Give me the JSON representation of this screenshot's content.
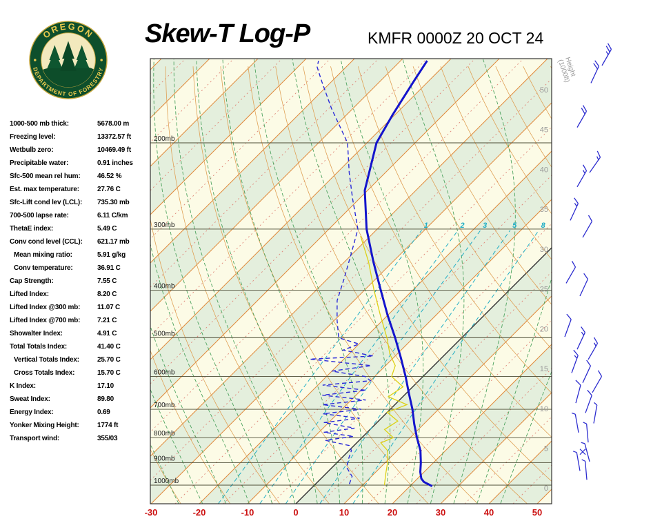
{
  "header": {
    "title": "Skew-T Log-P",
    "station_line": "KMFR 0000Z 20 OCT 24",
    "logo": {
      "org_top": "OREGON",
      "org_bottom": "DEPARTMENT OF FORESTRY"
    }
  },
  "stats": [
    {
      "label": "1000-500 mb thick:",
      "value": "5678.00 m",
      "indent": false
    },
    {
      "label": "Freezing level:",
      "value": "13372.57 ft",
      "indent": false
    },
    {
      "label": "Wetbulb zero:",
      "value": "10469.49 ft",
      "indent": false
    },
    {
      "label": "Precipitable water:",
      "value": "0.91 inches",
      "indent": false
    },
    {
      "label": "Sfc-500 mean rel hum:",
      "value": "46.52 %",
      "indent": false
    },
    {
      "label": "Est. max temperature:",
      "value": "27.76 C",
      "indent": false
    },
    {
      "label": "Sfc-Lift cond lev (LCL):",
      "value": "735.30 mb",
      "indent": false
    },
    {
      "label": "700-500 lapse rate:",
      "value": "6.11 C/km",
      "indent": false
    },
    {
      "label": "ThetaE index:",
      "value": "5.49 C",
      "indent": false
    },
    {
      "label": "Conv cond level (CCL):",
      "value": "621.17 mb",
      "indent": false
    },
    {
      "label": "Mean mixing ratio:",
      "value": "5.91 g/kg",
      "indent": true
    },
    {
      "label": "Conv temperature:",
      "value": "36.91 C",
      "indent": true
    },
    {
      "label": "Cap Strength:",
      "value": "7.55 C",
      "indent": false
    },
    {
      "label": "Lifted Index:",
      "value": "8.20 C",
      "indent": false
    },
    {
      "label": "Lifted Index @300 mb:",
      "value": "11.07 C",
      "indent": false
    },
    {
      "label": "Lifted Index @700 mb:",
      "value": "7.21 C",
      "indent": false
    },
    {
      "label": "Showalter Index:",
      "value": "4.91 C",
      "indent": false
    },
    {
      "label": "Total Totals Index:",
      "value": "41.40 C",
      "indent": false
    },
    {
      "label": "Vertical Totals Index:",
      "value": "25.70 C",
      "indent": true
    },
    {
      "label": "Cross Totals Index:",
      "value": "15.70 C",
      "indent": true
    },
    {
      "label": "K Index:",
      "value": "17.10",
      "indent": false
    },
    {
      "label": "Sweat Index:",
      "value": "89.80",
      "indent": false
    },
    {
      "label": "Energy Index:",
      "value": "0.69",
      "indent": false
    },
    {
      "label": "Yonker Mixing Height:",
      "value": "1774 ft",
      "indent": false
    },
    {
      "label": "Transport wind:",
      "value": "355/03",
      "indent": false
    }
  ],
  "chart_data": {
    "type": "skewt-log-p",
    "station": "KMFR",
    "valid_time": "0000Z 20 OCT 24",
    "pressure_unit": "mb",
    "pressure_levels": [
      200,
      300,
      400,
      500,
      600,
      700,
      800,
      900,
      1000
    ],
    "x_axis": {
      "ticks": [
        -30,
        -20,
        -10,
        0,
        10,
        20,
        30,
        40,
        50
      ],
      "unit": "C",
      "color": "#cc1111"
    },
    "height_axis": {
      "title": "Height",
      "subtitle": "(1000ft)",
      "ticks": [
        0,
        5,
        10,
        15,
        20,
        25,
        30,
        35,
        40,
        45,
        50
      ]
    },
    "isotherms": {
      "min": -120,
      "max": 50,
      "step": 10,
      "color": "#e08a3c"
    },
    "dry_adiabats": {
      "min": -30,
      "max": 150,
      "step": 10,
      "color": "#dfa055"
    },
    "moist_adiabats": {
      "start_temps": [
        -30,
        -25,
        -20,
        -15,
        -10,
        -5,
        0,
        5,
        10,
        15,
        20,
        25,
        30,
        35,
        40
      ],
      "color": "#4ea35f"
    },
    "mixing_ratio": {
      "values": [
        1,
        2,
        3,
        5,
        8
      ],
      "color": "#21aec5",
      "label_pressure": 300,
      "top_pressure": 292
    },
    "colors": {
      "bg": "#fcfbe6",
      "band": "#e4efdd",
      "isobar": "#4c4c35",
      "freezing": "#333333",
      "minor_isotherm": "#df8577",
      "barb": "#2c2ccf",
      "height_label": "#9a9a9a",
      "temperature": "#1414cc",
      "dewpoint": "#2a2ad8",
      "wetbulb": "#ddd116",
      "frame": "#333333",
      "pressure_label": "#1a1a1a"
    },
    "sounding": {
      "temperature": [
        [
          1005,
          24.6
        ],
        [
          985,
          22
        ],
        [
          970,
          20.8
        ],
        [
          940,
          19.2
        ],
        [
          900,
          17.4
        ],
        [
          850,
          14.8
        ],
        [
          800,
          11.4
        ],
        [
          750,
          8
        ],
        [
          700,
          4.6
        ],
        [
          650,
          0.6
        ],
        [
          600,
          -3.6
        ],
        [
          550,
          -8.4
        ],
        [
          500,
          -13.8
        ],
        [
          450,
          -20
        ],
        [
          400,
          -26.6
        ],
        [
          350,
          -34
        ],
        [
          300,
          -42.2
        ],
        [
          250,
          -50.6
        ],
        [
          200,
          -58
        ],
        [
          175,
          -60.5
        ],
        [
          150,
          -63
        ],
        [
          136,
          -64.5
        ]
      ],
      "dewpoint": [
        [
          995,
          7
        ],
        [
          960,
          6
        ],
        [
          920,
          3
        ],
        [
          880,
          1.5
        ],
        [
          850,
          0.5
        ],
        [
          830,
          -1
        ],
        [
          810,
          -7
        ],
        [
          795,
          -2
        ],
        [
          780,
          -9
        ],
        [
          765,
          -3.5
        ],
        [
          745,
          -11
        ],
        [
          730,
          -4.5
        ],
        [
          715,
          -13
        ],
        [
          700,
          -6
        ],
        [
          685,
          -15
        ],
        [
          670,
          -7
        ],
        [
          655,
          -17
        ],
        [
          640,
          -9
        ],
        [
          625,
          -19
        ],
        [
          612,
          -10
        ],
        [
          600,
          -12
        ],
        [
          585,
          -20
        ],
        [
          570,
          -13
        ],
        [
          553,
          -27
        ],
        [
          545,
          -14.5
        ],
        [
          530,
          -22
        ],
        [
          515,
          -20
        ],
        [
          500,
          -25.5
        ],
        [
          460,
          -29.5
        ],
        [
          420,
          -33.5
        ],
        [
          380,
          -36.5
        ],
        [
          340,
          -40
        ],
        [
          300,
          -44
        ],
        [
          260,
          -51.4
        ],
        [
          230,
          -57.5
        ],
        [
          200,
          -64
        ],
        [
          170,
          -74.5
        ],
        [
          150,
          -82
        ],
        [
          140,
          -86
        ],
        [
          136,
          -87
        ]
      ],
      "wetbulb": [
        [
          1000,
          14.5
        ],
        [
          950,
          12.5
        ],
        [
          900,
          10.5
        ],
        [
          850,
          8
        ],
        [
          820,
          5
        ],
        [
          800,
          6.5
        ],
        [
          770,
          3
        ],
        [
          740,
          4
        ],
        [
          710,
          0
        ],
        [
          685,
          2.5
        ],
        [
          660,
          -3
        ],
        [
          630,
          -2
        ],
        [
          600,
          -6.5
        ],
        [
          570,
          -8
        ],
        [
          540,
          -11.5
        ],
        [
          500,
          -15.5
        ],
        [
          450,
          -21.5
        ],
        [
          400,
          -28
        ],
        [
          350,
          -35
        ],
        [
          310,
          -42
        ]
      ]
    },
    "wind_barbs": [
      {
        "p": 139,
        "dir": 30,
        "spd": 25,
        "xo": 28
      },
      {
        "p": 151,
        "dir": 25,
        "spd": 20,
        "xo": 12
      },
      {
        "p": 186,
        "dir": 30,
        "spd": 20,
        "xo": -8
      },
      {
        "p": 230,
        "dir": 35,
        "spd": 15,
        "xo": 10
      },
      {
        "p": 246,
        "dir": 30,
        "spd": 15,
        "xo": -8
      },
      {
        "p": 288,
        "dir": 25,
        "spd": 15,
        "xo": -18
      },
      {
        "p": 312,
        "dir": 30,
        "spd": 10,
        "xo": 0
      },
      {
        "p": 387,
        "dir": 30,
        "spd": 10,
        "xo": -24
      },
      {
        "p": 411,
        "dir": 25,
        "spd": 10,
        "xo": -4
      },
      {
        "p": 498,
        "dir": 20,
        "spd": 10,
        "xo": -26
      },
      {
        "p": 528,
        "dir": 25,
        "spd": 15,
        "xo": -8
      },
      {
        "p": 554,
        "dir": 30,
        "spd": 15,
        "xo": 8
      },
      {
        "p": 590,
        "dir": 20,
        "spd": 15,
        "xo": -16
      },
      {
        "p": 618,
        "dir": 25,
        "spd": 10,
        "xo": 0
      },
      {
        "p": 647,
        "dir": 30,
        "spd": 10,
        "xo": 14
      },
      {
        "p": 680,
        "dir": 15,
        "spd": 10,
        "xo": -10
      },
      {
        "p": 712,
        "dir": 20,
        "spd": 10,
        "xo": 4
      },
      {
        "p": 748,
        "dir": 10,
        "spd": 5,
        "xo": 16
      },
      {
        "p": 781,
        "dir": 350,
        "spd": 5,
        "xo": -6
      },
      {
        "p": 818,
        "dir": 355,
        "spd": 5,
        "xo": 8
      },
      {
        "p": 855,
        "dir": 0,
        "spd": 0,
        "xo": 0
      },
      {
        "p": 895,
        "dir": 345,
        "spd": 3,
        "xo": 10
      },
      {
        "p": 935,
        "dir": 350,
        "spd": 3,
        "xo": -4
      },
      {
        "p": 975,
        "dir": 355,
        "spd": 3,
        "xo": 6
      }
    ]
  }
}
